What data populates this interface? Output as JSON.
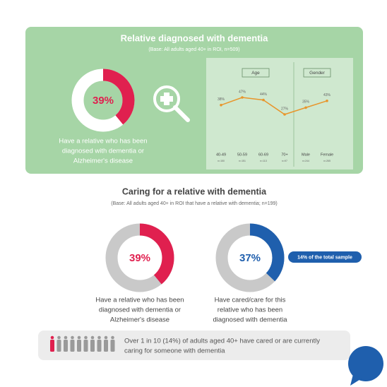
{
  "header": {
    "title": "Relative diagnosed with dementia",
    "subtitle": "(Base: All adults aged 40+ in ROI, n=509)"
  },
  "section": {
    "title": "Caring for a relative with dementia",
    "subtitle": "(Base: All adults aged 40+ in ROI that have a relative with dementia; n=199)"
  },
  "chart_data": [
    {
      "type": "donut",
      "values": [
        39
      ],
      "value_labels": [
        "39%"
      ],
      "color": "#e0204f",
      "track_color": "#ffffff",
      "caption": [
        "Have a relative who has been",
        "diagnosed with dementia or",
        "Alzheimer's disease"
      ]
    },
    {
      "type": "line",
      "groups": [
        "Age",
        "Gender"
      ],
      "categories": [
        "40-49",
        "50-59",
        "60-69",
        "70+",
        "Male",
        "Female"
      ],
      "bases": [
        "n=150",
        "n=151",
        "n=113",
        "n=97",
        "n=244",
        "n=265"
      ],
      "values": [
        38,
        47,
        44,
        27,
        35,
        43
      ],
      "value_labels": [
        "38%",
        "47%",
        "44%",
        "27%",
        "35%",
        "43%"
      ],
      "color": "#e8952b"
    },
    {
      "type": "donut",
      "values": [
        39
      ],
      "value_labels": [
        "39%"
      ],
      "color": "#e0204f",
      "track_color": "#c9c9c9",
      "caption": [
        "Have a relative who has been",
        "diagnosed with dementia or",
        "Alzheimer's disease"
      ]
    },
    {
      "type": "donut",
      "values": [
        37
      ],
      "value_labels": [
        "37%"
      ],
      "color": "#1f5fad",
      "track_color": "#c9c9c9",
      "caption": [
        "Have cared/care for this",
        "relative who has been",
        "diagnosed with dementia"
      ],
      "callout": "14% of the total sample"
    }
  ],
  "footer": {
    "text": [
      "Over 1 in 10 (14%) of adults aged 40+ have cared or are currently",
      "caring for someone with dementia"
    ]
  }
}
